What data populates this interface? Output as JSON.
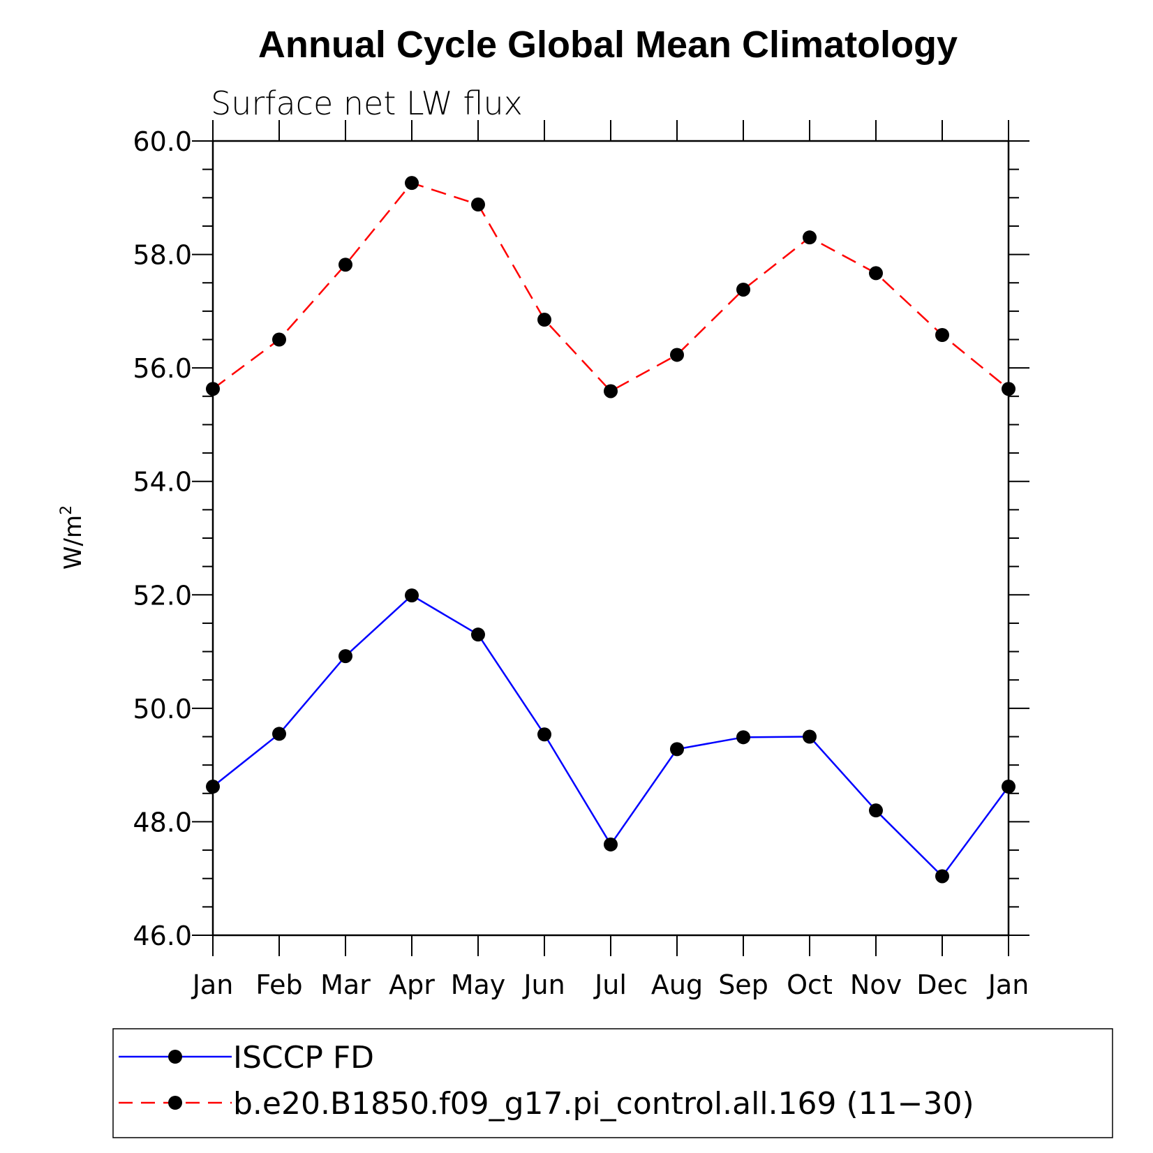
{
  "chart_data": {
    "type": "line",
    "title": "Annual Cycle Global Mean Climatology",
    "subtitle": "Surface net LW flux",
    "ylabel": "W/m",
    "ylabel_sup": "2",
    "ylim": [
      46.0,
      60.0
    ],
    "yticks": [
      "46.0",
      "48.0",
      "50.0",
      "52.0",
      "54.0",
      "56.0",
      "58.0",
      "60.0"
    ],
    "categories": [
      "Jan",
      "Feb",
      "Mar",
      "Apr",
      "May",
      "Jun",
      "Jul",
      "Aug",
      "Sep",
      "Oct",
      "Nov",
      "Dec",
      "Jan"
    ],
    "grid": false,
    "legend_position": "bottom",
    "series": [
      {
        "name": "ISCCP FD",
        "color": "#0000ff",
        "dash": "solid",
        "values": [
          48.62,
          49.55,
          50.92,
          51.99,
          51.3,
          49.54,
          47.6,
          49.28,
          49.49,
          49.5,
          48.2,
          47.04,
          48.62
        ]
      },
      {
        "name": "b.e20.B1850.f09_g17.pi_control.all.169 (11−30)",
        "color": "#ff0000",
        "dash": "dashed",
        "values": [
          55.63,
          56.5,
          57.82,
          59.26,
          58.88,
          56.85,
          55.59,
          56.23,
          57.38,
          58.3,
          57.67,
          56.58,
          55.63
        ]
      }
    ]
  }
}
